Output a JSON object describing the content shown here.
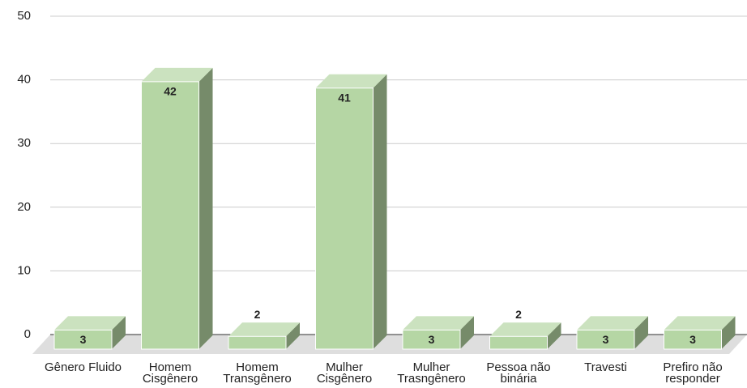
{
  "chart_data": {
    "type": "bar",
    "categories": [
      "Gênero Fluido",
      "Homem Cisgênero",
      "Homem Transgênero",
      "Mulher Cisgênero",
      "Mulher Trasngênero",
      "Pessoa não binária",
      "Travesti",
      "Prefiro não responder"
    ],
    "values": [
      3,
      42,
      2,
      41,
      3,
      2,
      3,
      3
    ],
    "color": "#b5d6a4",
    "ylim": [
      0,
      50
    ],
    "yticks": [
      0,
      10,
      20,
      30,
      40,
      50
    ],
    "grid": true
  }
}
